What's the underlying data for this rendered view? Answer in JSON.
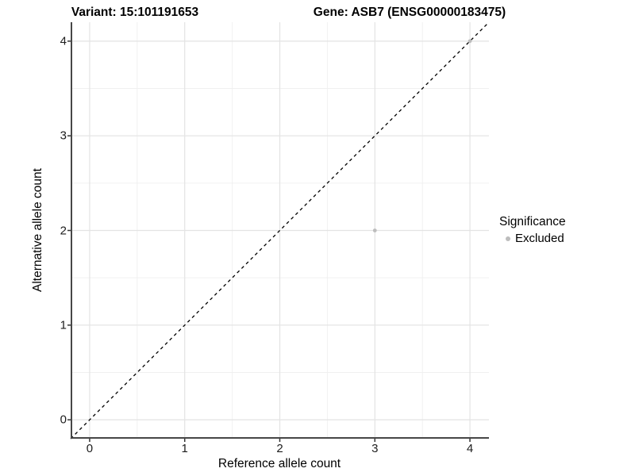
{
  "chart_data": {
    "type": "scatter",
    "title_left": "Variant: 15:101191653",
    "title_right": "Gene: ASB7 (ENSG00000183475)",
    "xlabel": "Reference allele count",
    "ylabel": "Alternative allele count",
    "xlim": [
      -0.2,
      4.2
    ],
    "ylim": [
      -0.2,
      4.2
    ],
    "x_ticks": [
      0,
      1,
      2,
      3,
      4
    ],
    "y_ticks": [
      0,
      1,
      2,
      3,
      4
    ],
    "grid": "major+minor",
    "legend_position": "right",
    "legend": {
      "title": "Significance",
      "entries": [
        {
          "label": "Excluded",
          "color": "#bdbdbd"
        }
      ]
    },
    "series": [
      {
        "name": "Excluded",
        "color": "#bdbdbd",
        "points": [
          [
            3,
            2
          ],
          [
            4,
            4
          ]
        ]
      }
    ],
    "reference_line": {
      "equation": "y = x",
      "style": "dashed",
      "color": "#000000"
    }
  },
  "style": {
    "background": "#ffffff",
    "grid_major": "#e3e3e3",
    "grid_minor": "#f0f0f0",
    "axis_line": "#474747",
    "tick_color": "#333333",
    "tick_label_color": "#1d1d1d",
    "point_color": "#bdbdbd"
  }
}
